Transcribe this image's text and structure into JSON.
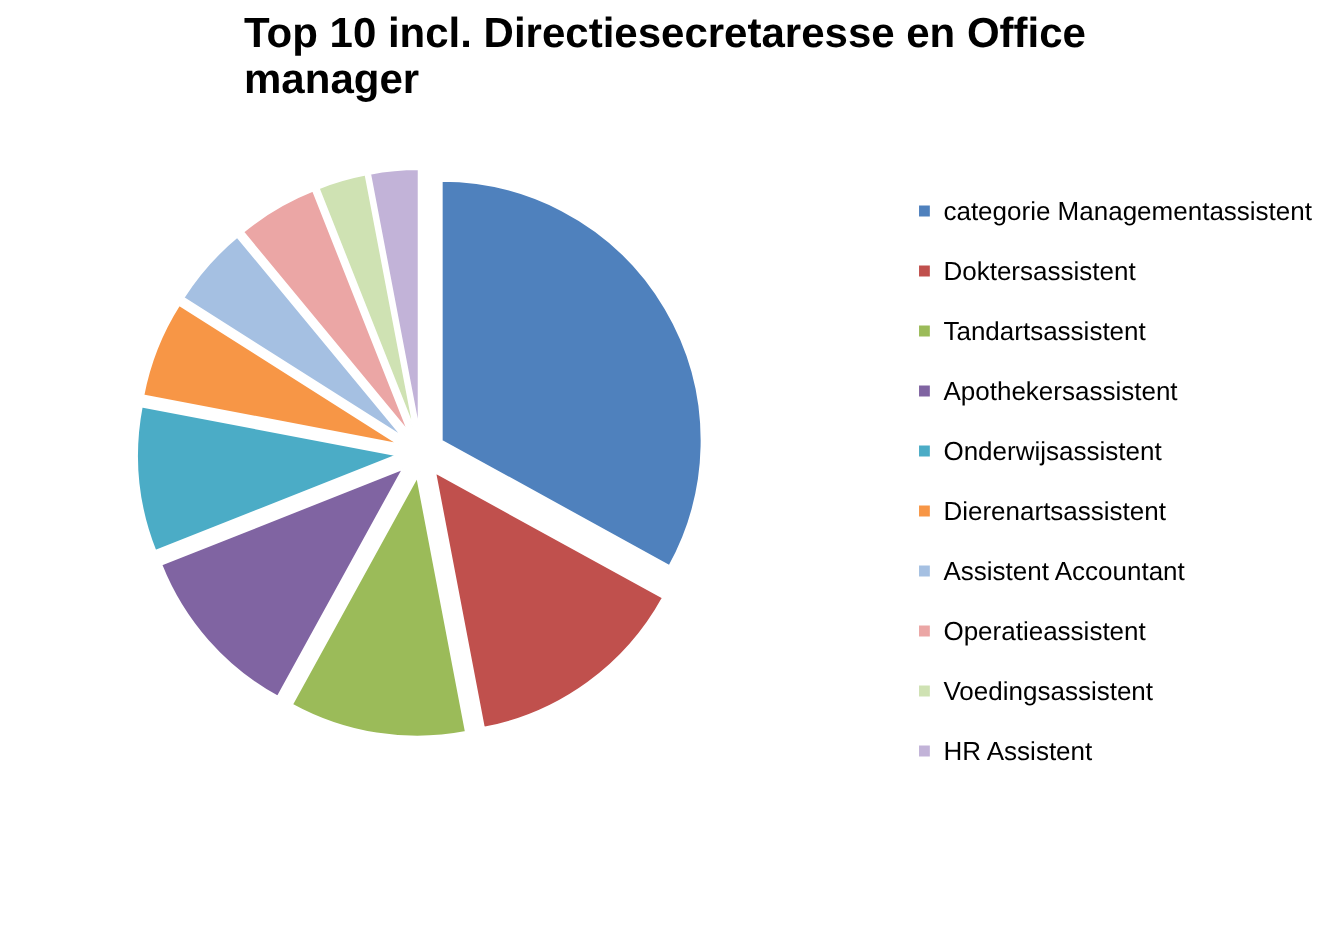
{
  "chart_data": {
    "type": "pie",
    "title": "Top 10 incl. Directiesecretaresse en Office manager",
    "categories": [
      "categorie Managementassistent",
      "Doktersassistent",
      "Tandartsassistent",
      "Apothekersassistent",
      "Onderwijsassistent",
      "Dierenartsassistent",
      "Assistent Accountant",
      "Operatieassistent",
      "Voedingsassistent",
      "HR Assistent"
    ],
    "values": [
      33,
      14,
      11,
      11,
      9,
      6,
      5,
      5,
      3,
      3
    ],
    "colors": [
      "#4f81bd",
      "#c0504d",
      "#9bbb59",
      "#8064a2",
      "#4bacc6",
      "#f79646",
      "#a5c0e2",
      "#eba6a5",
      "#cfe2b3",
      "#c2b3d8"
    ],
    "legend": "right"
  }
}
